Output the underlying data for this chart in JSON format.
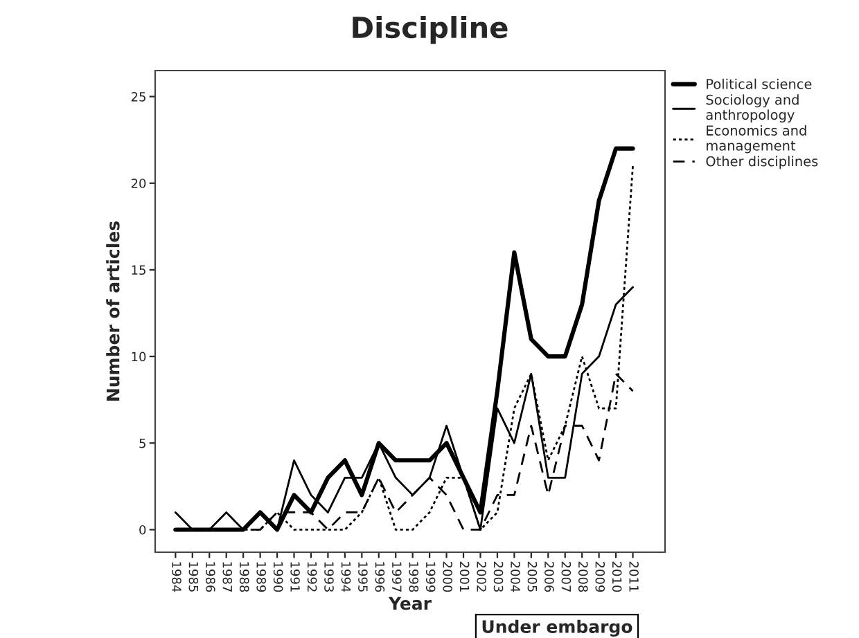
{
  "chart_data": {
    "type": "line",
    "title": "Discipline",
    "xlabel": "Year",
    "ylabel": "Number of articles",
    "categories": [
      "1984",
      "1985",
      "1986",
      "1987",
      "1988",
      "1989",
      "1990",
      "1991",
      "1992",
      "1993",
      "1994",
      "1995",
      "1996",
      "1997",
      "1998",
      "1999",
      "2000",
      "2001",
      "2002",
      "2003",
      "2004",
      "2005",
      "2006",
      "2007",
      "2008",
      "2009",
      "2010",
      "2011"
    ],
    "series": [
      {
        "name": "Political science",
        "color": "#000000",
        "line_style": "solid",
        "values": [
          0,
          0,
          0,
          0,
          0,
          1,
          0,
          2,
          1,
          3,
          4,
          2,
          5,
          4,
          4,
          4,
          5,
          3,
          1,
          8,
          16,
          11,
          10,
          10,
          13,
          19,
          22,
          22
        ]
      },
      {
        "name": "Sociology and\nanthropology",
        "color": "#000000",
        "line_style": "solid",
        "values": [
          1,
          0,
          0,
          1,
          0,
          1,
          0,
          4,
          2,
          1,
          3,
          3,
          5,
          3,
          2,
          3,
          6,
          3,
          0,
          7,
          5,
          9,
          3,
          3,
          9,
          10,
          13,
          14
        ]
      },
      {
        "name": "Economics and\nmanagement",
        "color": "#000000",
        "line_style": "dotted",
        "values": [
          0,
          0,
          0,
          0,
          0,
          0,
          1,
          0,
          0,
          0,
          0,
          1,
          3,
          0,
          0,
          1,
          3,
          3,
          0,
          1,
          7,
          9,
          4,
          6,
          10,
          7,
          7,
          21
        ]
      },
      {
        "name": "Other disciplines",
        "color": "#000000",
        "line_style": "dashed",
        "values": [
          0,
          0,
          0,
          0,
          0,
          0,
          1,
          1,
          1,
          0,
          1,
          1,
          3,
          1,
          2,
          3,
          2,
          0,
          0,
          2,
          2,
          6,
          2,
          6,
          6,
          4,
          9,
          8
        ]
      }
    ],
    "ylim": [
      -1.3,
      26.5
    ],
    "yticks": [
      0,
      5,
      10,
      15,
      20,
      25
    ],
    "grid": false,
    "legend": "top right",
    "marker": "none",
    "annotations": [
      "Under embargo"
    ]
  }
}
